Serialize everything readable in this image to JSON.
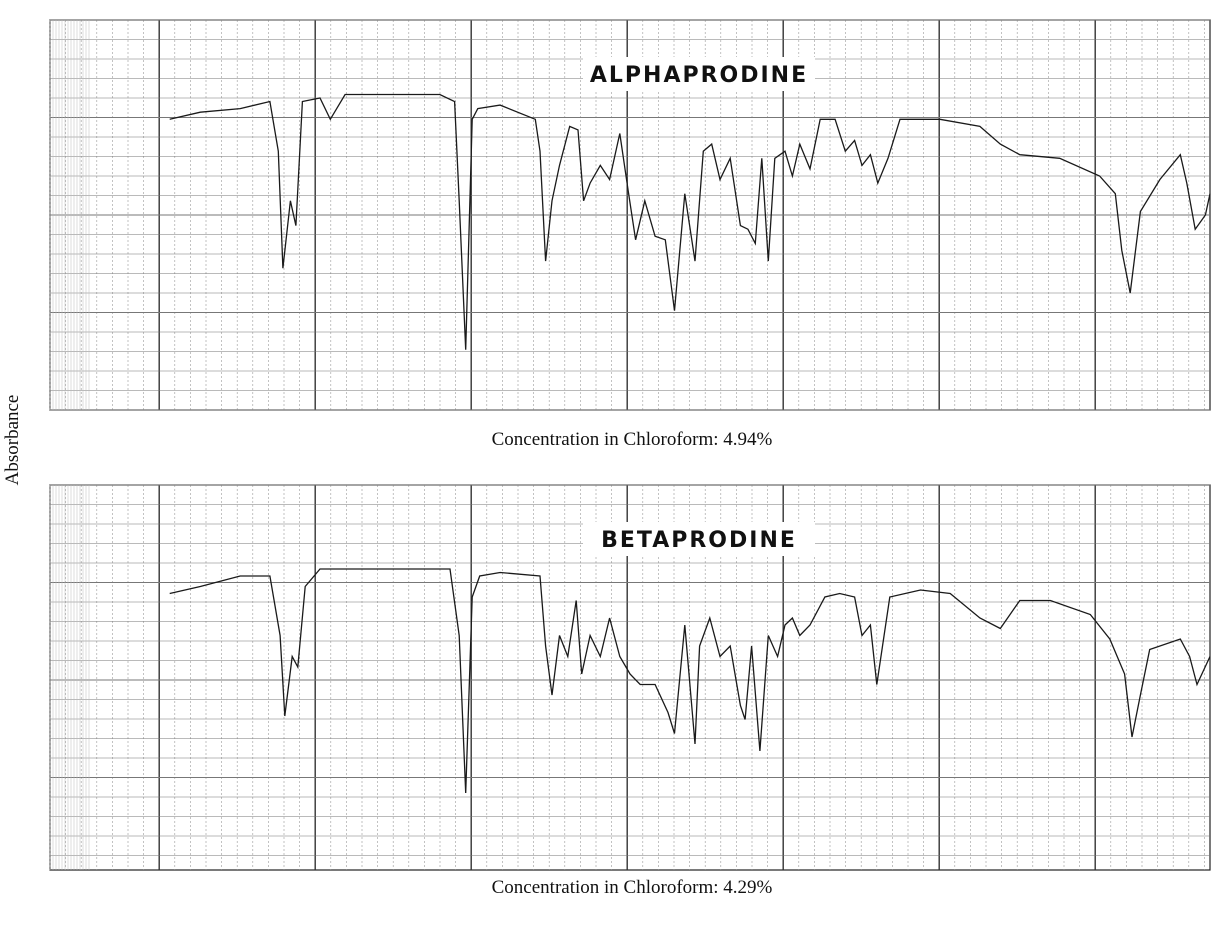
{
  "ylabel": "Absorbance",
  "chart_data": [
    {
      "type": "line",
      "title": "ALPHAPRODINE",
      "caption": "Concentration in Chloroform: 4.94%",
      "color": "#1a1a1a",
      "grid": true,
      "y_inverted": true,
      "xlim": [
        2.5,
        15.0
      ],
      "ylim": [
        0,
        1.1
      ],
      "x": [
        3.79,
        4.12,
        4.55,
        4.87,
        4.96,
        5.01,
        5.09,
        5.15,
        5.22,
        5.41,
        5.52,
        5.68,
        6.27,
        6.7,
        6.86,
        6.91,
        6.98,
        7.05,
        7.11,
        7.35,
        7.73,
        7.78,
        7.84,
        7.91,
        7.99,
        8.1,
        8.19,
        8.25,
        8.32,
        8.43,
        8.53,
        8.64,
        8.73,
        8.81,
        8.91,
        9.02,
        9.13,
        9.23,
        9.34,
        9.45,
        9.54,
        9.63,
        9.72,
        9.83,
        9.94,
        10.02,
        10.1,
        10.17,
        10.24,
        10.31,
        10.42,
        10.5,
        10.58,
        10.69,
        10.8,
        10.96,
        11.07,
        11.17,
        11.25,
        11.34,
        11.42,
        11.53,
        11.66,
        12.09,
        12.52,
        12.74,
        12.95,
        13.38,
        13.81,
        13.98,
        14.05,
        14.14,
        14.25,
        14.46,
        14.68,
        14.75,
        14.84,
        14.95,
        15.0
      ],
      "values": [
        0.28,
        0.26,
        0.25,
        0.23,
        0.37,
        0.7,
        0.51,
        0.58,
        0.23,
        0.22,
        0.28,
        0.21,
        0.21,
        0.21,
        0.23,
        0.51,
        0.93,
        0.28,
        0.25,
        0.24,
        0.28,
        0.37,
        0.68,
        0.51,
        0.41,
        0.3,
        0.31,
        0.51,
        0.46,
        0.41,
        0.45,
        0.32,
        0.48,
        0.62,
        0.51,
        0.61,
        0.62,
        0.82,
        0.49,
        0.68,
        0.37,
        0.35,
        0.45,
        0.39,
        0.58,
        0.59,
        0.63,
        0.39,
        0.68,
        0.39,
        0.37,
        0.44,
        0.35,
        0.42,
        0.28,
        0.28,
        0.37,
        0.34,
        0.41,
        0.38,
        0.46,
        0.39,
        0.28,
        0.28,
        0.3,
        0.35,
        0.38,
        0.39,
        0.44,
        0.49,
        0.65,
        0.77,
        0.54,
        0.45,
        0.38,
        0.46,
        0.59,
        0.55,
        0.49
      ]
    },
    {
      "type": "line",
      "title": "BETAPRODINE",
      "caption": "Concentration in Chloroform: 4.29%",
      "color": "#1a1a1a",
      "grid": true,
      "y_inverted": true,
      "xlim": [
        2.5,
        15.0
      ],
      "ylim": [
        0,
        1.1
      ],
      "x": [
        3.79,
        4.12,
        4.55,
        4.87,
        4.98,
        5.03,
        5.11,
        5.17,
        5.25,
        5.41,
        5.68,
        6.27,
        6.81,
        6.91,
        6.98,
        7.05,
        7.13,
        7.35,
        7.78,
        7.84,
        7.91,
        7.99,
        8.08,
        8.17,
        8.23,
        8.32,
        8.43,
        8.53,
        8.64,
        8.75,
        8.86,
        9.02,
        9.16,
        9.23,
        9.34,
        9.45,
        9.5,
        9.61,
        9.72,
        9.83,
        9.94,
        9.99,
        10.06,
        10.15,
        10.24,
        10.34,
        10.42,
        10.5,
        10.58,
        10.69,
        10.85,
        11.01,
        11.17,
        11.25,
        11.34,
        11.41,
        11.55,
        11.88,
        12.2,
        12.52,
        12.74,
        12.95,
        13.28,
        13.71,
        13.92,
        14.08,
        14.16,
        14.25,
        14.35,
        14.68,
        14.78,
        14.86,
        15.0
      ],
      "values": [
        0.31,
        0.29,
        0.26,
        0.26,
        0.43,
        0.66,
        0.49,
        0.52,
        0.29,
        0.24,
        0.24,
        0.24,
        0.24,
        0.43,
        0.88,
        0.32,
        0.26,
        0.25,
        0.26,
        0.46,
        0.6,
        0.43,
        0.49,
        0.33,
        0.54,
        0.43,
        0.49,
        0.38,
        0.49,
        0.54,
        0.57,
        0.57,
        0.65,
        0.71,
        0.4,
        0.74,
        0.46,
        0.38,
        0.49,
        0.46,
        0.63,
        0.67,
        0.46,
        0.76,
        0.43,
        0.49,
        0.4,
        0.38,
        0.43,
        0.4,
        0.32,
        0.31,
        0.32,
        0.43,
        0.4,
        0.57,
        0.32,
        0.3,
        0.31,
        0.38,
        0.41,
        0.33,
        0.33,
        0.37,
        0.44,
        0.54,
        0.72,
        0.6,
        0.47,
        0.44,
        0.49,
        0.57,
        0.49
      ]
    }
  ]
}
